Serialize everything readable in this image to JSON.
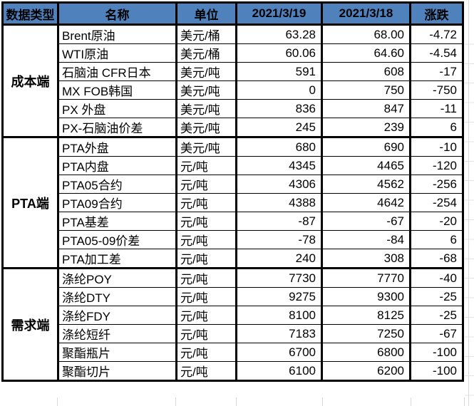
{
  "table": {
    "headers": [
      "数据类型",
      "名称",
      "单位",
      "2021/3/19",
      "2021/3/18",
      "涨跌"
    ],
    "sections": [
      {
        "group": "成本端",
        "rows": [
          [
            "Brent原油",
            "美元/桶",
            "63.28",
            "68.00",
            "-4.72"
          ],
          [
            "WTI原油",
            "美元/桶",
            "60.06",
            "64.60",
            "-4.54"
          ],
          [
            "石脑油 CFR日本",
            "美元/吨",
            "591",
            "608",
            "-17"
          ],
          [
            "MX FOB韩国",
            "美元/吨",
            "0",
            "750",
            "-750"
          ],
          [
            "PX 外盘",
            "美元/吨",
            "836",
            "847",
            "-11"
          ],
          [
            "PX-石脑油价差",
            "美元/吨",
            "245",
            "239",
            "6"
          ]
        ]
      },
      {
        "group": "PTA端",
        "rows": [
          [
            "PTA外盘",
            "美元/吨",
            "680",
            "690",
            "-10"
          ],
          [
            "PTA内盘",
            "元/吨",
            "4345",
            "4465",
            "-120"
          ],
          [
            "PTA05合约",
            "元/吨",
            "4306",
            "4562",
            "-256"
          ],
          [
            "PTA09合约",
            "元/吨",
            "4388",
            "4642",
            "-254"
          ],
          [
            "PTA基差",
            "元/吨",
            "-87",
            "-67",
            "-20"
          ],
          [
            "PTA05-09价差",
            "元/吨",
            "-78",
            "-84",
            "6"
          ],
          [
            "PTA加工差",
            "元/吨",
            "240",
            "308",
            "-68"
          ]
        ]
      },
      {
        "group": "需求端",
        "rows": [
          [
            "涤纶POY",
            "元/吨",
            "7730",
            "7770",
            "-40"
          ],
          [
            "涤纶DTY",
            "元/吨",
            "9275",
            "9300",
            "-25"
          ],
          [
            "涤纶FDY",
            "元/吨",
            "8100",
            "8125",
            "-25"
          ],
          [
            "涤纶短纤",
            "元/吨",
            "7183",
            "7250",
            "-67"
          ],
          [
            "聚酯瓶片",
            "元/吨",
            "6700",
            "6800",
            "-100"
          ],
          [
            "聚酯切片",
            "元/吨",
            "6100",
            "6200",
            "-100"
          ]
        ]
      }
    ]
  },
  "colors": {
    "header_bg": "#4f81bd",
    "border": "#000000",
    "gridline": "#d9d9d9"
  }
}
